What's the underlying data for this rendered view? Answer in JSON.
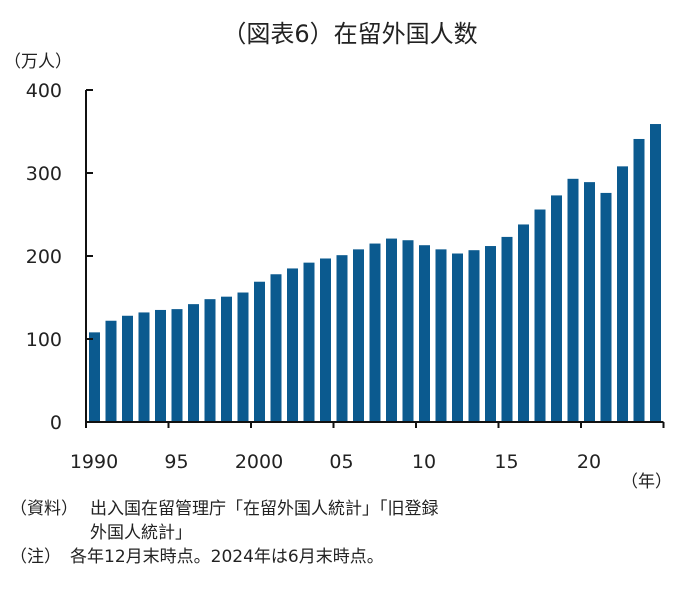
{
  "chart_data": {
    "type": "bar",
    "title": "（図表6）在留外国人数",
    "ylabel": "（万人）",
    "xlabel": "（年）",
    "ylim": [
      0,
      400
    ],
    "yticks": [
      0,
      100,
      200,
      300,
      400
    ],
    "xtick_labels": [
      "1990",
      "95",
      "2000",
      "05",
      "10",
      "15",
      "20"
    ],
    "categories": [
      1990,
      1991,
      1992,
      1993,
      1994,
      1995,
      1996,
      1997,
      1998,
      1999,
      2000,
      2001,
      2002,
      2003,
      2004,
      2005,
      2006,
      2007,
      2008,
      2009,
      2010,
      2011,
      2012,
      2013,
      2014,
      2015,
      2016,
      2017,
      2018,
      2019,
      2020,
      2021,
      2022,
      2023,
      2024
    ],
    "values": [
      108,
      122,
      128,
      132,
      135,
      136,
      142,
      148,
      151,
      156,
      169,
      178,
      185,
      192,
      197,
      201,
      208,
      215,
      221,
      219,
      213,
      208,
      203,
      207,
      212,
      223,
      238,
      256,
      273,
      293,
      289,
      276,
      308,
      341,
      359
    ],
    "bar_color": "#0b5a8f",
    "grid": false
  },
  "notes": {
    "source_label": "（資料）",
    "source_text_1": "出入国在留管理庁「在留外国人統計」「旧登録",
    "source_text_2": "外国人統計」",
    "note_label": "（注）",
    "note_text": "各年12月末時点。2024年は6月末時点。"
  }
}
